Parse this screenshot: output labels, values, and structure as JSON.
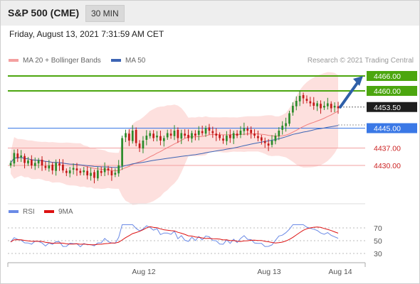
{
  "header": {
    "title": "S&P 500 (CME)",
    "timeframe": "30 MIN"
  },
  "datetime": "Friday, August 13, 2021 7:31:59 AM CET",
  "credit": "Research © 2021 Trading Central",
  "legend": {
    "ma": "MA 20 + Bollinger Bands",
    "ma50": "MA 50",
    "rsi": "RSI",
    "rsi9": "9MA"
  },
  "colors": {
    "resistance": "#4ca60f",
    "support": "#e06060",
    "pivot": "#3a78e6",
    "up": "#2a8b2a",
    "down": "#c41818",
    "band": "#fde0de",
    "ma20": "#f07f7f",
    "ma50": "#3c64b4"
  },
  "chart_data": {
    "type": "candlestick",
    "price_range": [
      4423,
      4471
    ],
    "x_ticks": [
      "Aug 12",
      "Aug 13",
      "Aug 14"
    ],
    "levels": [
      {
        "value": 4466.0,
        "label": "4466.00",
        "kind": "resistance"
      },
      {
        "value": 4460.0,
        "label": "4460.00",
        "kind": "resistance"
      },
      {
        "value": 4453.5,
        "label": "4453.50",
        "kind": "last"
      },
      {
        "value": 4445.0,
        "label": "4445.00",
        "kind": "pivot"
      },
      {
        "value": 4437.0,
        "label": "4437.00",
        "kind": "support"
      },
      {
        "value": 4430.0,
        "label": "4430.00",
        "kind": "support"
      }
    ],
    "close": [
      4431,
      4435,
      4433,
      4434,
      4431,
      4432,
      4430,
      4431,
      4432,
      4430,
      4429,
      4430,
      4428,
      4431,
      4430,
      4428,
      4427,
      4428,
      4429,
      4428,
      4427,
      4428,
      4426,
      4427,
      4425,
      4428,
      4427,
      4429,
      4428,
      4426,
      4427,
      4430,
      4441,
      4443,
      4440,
      4444,
      4439,
      4437,
      4440,
      4442,
      4443,
      4441,
      4442,
      4440,
      4441,
      4443,
      4442,
      4444,
      4441,
      4443,
      4442,
      4441,
      4443,
      4442,
      4444,
      4443,
      4445,
      4444,
      4443,
      4442,
      4441,
      4440,
      4442,
      4441,
      4443,
      4442,
      4444,
      4445,
      4444,
      4443,
      4442,
      4441,
      4440,
      4439,
      4438,
      4440,
      4442,
      4444,
      4446,
      4447,
      4451,
      4454,
      4456,
      4458,
      4457,
      4456,
      4455,
      4454,
      4455,
      4453,
      4454,
      4455,
      4453,
      4454,
      4453
    ],
    "rsi": {
      "ticks": [
        70,
        50,
        30
      ]
    },
    "arrow": {
      "from": 4453.5,
      "to": 4466.0
    }
  }
}
